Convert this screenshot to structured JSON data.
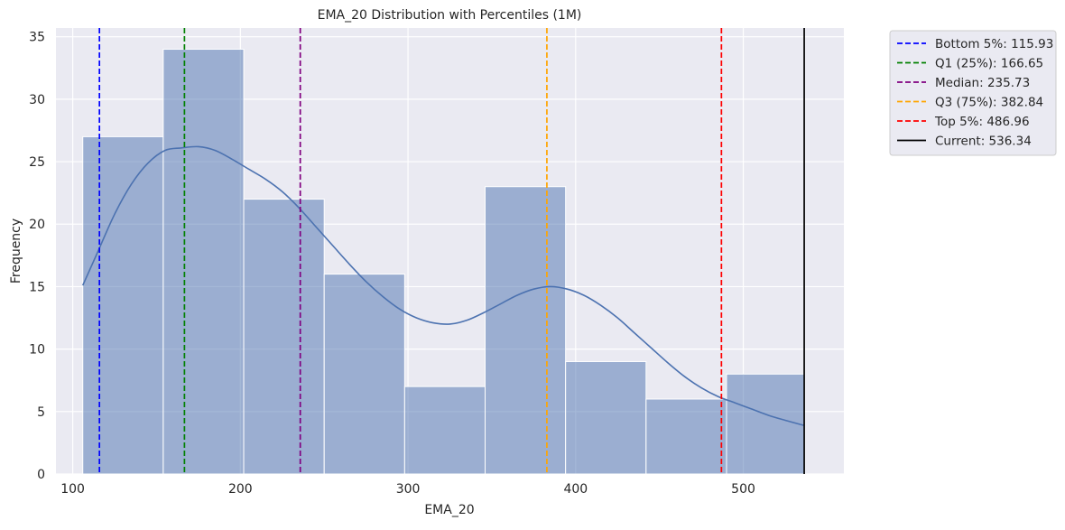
{
  "chart_data": {
    "type": "bar",
    "title": "EMA_20 Distribution with Percentiles (1M)",
    "xlabel": "EMA_20",
    "ylabel": "Frequency",
    "xlim": [
      90,
      560
    ],
    "ylim": [
      0,
      35.7
    ],
    "xticks": [
      100,
      200,
      300,
      400,
      500
    ],
    "yticks": [
      0,
      5,
      10,
      15,
      20,
      25,
      30,
      35
    ],
    "grid": true,
    "legend_position": "outside-top-right",
    "bin_edges": [
      106.0,
      154.0,
      202.0,
      250.0,
      298.0,
      346.0,
      394.0,
      442.0,
      490.0,
      536.34
    ],
    "counts": [
      27,
      34,
      22,
      16,
      7,
      23,
      9,
      6,
      8
    ],
    "bar_color": "#4c72b0",
    "kde": {
      "x": [
        106,
        115,
        125,
        135,
        145,
        155,
        165,
        175,
        185,
        195,
        205,
        215,
        225,
        235,
        245,
        255,
        265,
        275,
        285,
        295,
        305,
        315,
        325,
        335,
        345,
        355,
        365,
        375,
        385,
        395,
        405,
        415,
        425,
        435,
        445,
        455,
        465,
        475,
        485,
        495,
        505,
        515,
        525,
        536
      ],
      "y": [
        15.1,
        17.8,
        20.8,
        23.2,
        24.9,
        25.9,
        26.1,
        26.2,
        25.9,
        25.2,
        24.4,
        23.6,
        22.6,
        21.3,
        19.8,
        18.3,
        16.8,
        15.4,
        14.2,
        13.2,
        12.5,
        12.1,
        12.0,
        12.3,
        12.9,
        13.6,
        14.3,
        14.8,
        15.0,
        14.8,
        14.3,
        13.5,
        12.5,
        11.3,
        10.1,
        8.9,
        7.8,
        6.9,
        6.2,
        5.7,
        5.2,
        4.7,
        4.3,
        3.9
      ],
      "color": "#4c72b0"
    },
    "reference_lines": [
      {
        "label": "Bottom 5%: 115.93",
        "x": 115.93,
        "color": "#0000ff",
        "style": "dashed"
      },
      {
        "label": "Q1 (25%): 166.65",
        "x": 166.65,
        "color": "#008000",
        "style": "dashed"
      },
      {
        "label": "Median: 235.73",
        "x": 235.73,
        "color": "#800080",
        "style": "dashed"
      },
      {
        "label": "Q3 (75%): 382.84",
        "x": 382.84,
        "color": "#ffa500",
        "style": "dashed"
      },
      {
        "label": "Top 5%: 486.96",
        "x": 486.96,
        "color": "#ff0000",
        "style": "dashed"
      },
      {
        "label": "Current: 536.34",
        "x": 536.34,
        "color": "#000000",
        "style": "solid"
      }
    ]
  }
}
